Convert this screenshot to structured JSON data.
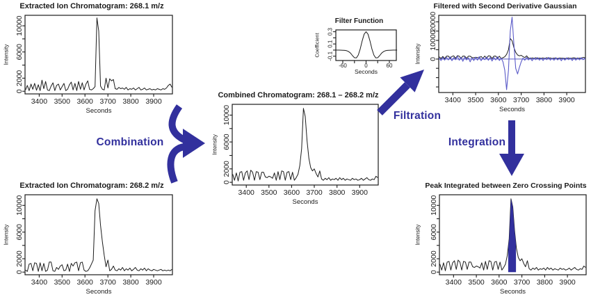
{
  "figure": {
    "background": "#ffffff",
    "accent": "#32309d",
    "blue_line": "#5a5ac8",
    "black_line": "#1b1b1b",
    "text_color": "#1b1b1b"
  },
  "arrows": {
    "combination": {
      "label": "Combination"
    },
    "filtration": {
      "label": "Filtration"
    },
    "integration": {
      "label": "Integration"
    }
  },
  "chart_data": {
    "shared_series": {
      "eic1": {
        "x0": 3340,
        "dx": 8,
        "y": [
          200,
          900,
          100,
          1100,
          300,
          1200,
          150,
          1000,
          100,
          1700,
          400,
          1500,
          200,
          100,
          800,
          1300,
          100,
          900,
          1100,
          200,
          700,
          1200,
          100,
          300,
          1000,
          1400,
          200,
          1200,
          100,
          1500,
          300,
          1300,
          200,
          1100,
          1600,
          300,
          200,
          400,
          700,
          11200,
          9200,
          800,
          300,
          200,
          2000,
          500,
          1900,
          1600,
          1800,
          400,
          300,
          600,
          400,
          500,
          300,
          600,
          200,
          400,
          300,
          500,
          200,
          400,
          600,
          200,
          300,
          500,
          200,
          300,
          400,
          200,
          300,
          200,
          400,
          300,
          200,
          400,
          300,
          500,
          900,
          1100,
          600
        ]
      },
      "eic2": {
        "x0": 3340,
        "dx": 8,
        "y": [
          300,
          100,
          1200,
          1300,
          200,
          1400,
          1300,
          100,
          1400,
          200,
          1300,
          100,
          300,
          1500,
          1500,
          200,
          100,
          700,
          400,
          900,
          1100,
          200,
          300,
          1200,
          100,
          1300,
          900,
          1400,
          1500,
          200,
          1400,
          1500,
          300,
          100,
          200,
          600,
          1200,
          1800,
          9200,
          11000,
          10300,
          7000,
          4500,
          2500,
          800,
          1800,
          200,
          400,
          900,
          300,
          200,
          500,
          300,
          700,
          200,
          500,
          300,
          600,
          200,
          400,
          700,
          300,
          200,
          500,
          300,
          600,
          200,
          500,
          300,
          200,
          400,
          300,
          200,
          300,
          400,
          200,
          300,
          200,
          300,
          200,
          400
        ]
      },
      "combined": {
        "x0": 3340,
        "dx": 8,
        "y": [
          1200,
          300,
          1400,
          200,
          1500,
          1600,
          300,
          1400,
          1700,
          400,
          1800,
          1500,
          300,
          1600,
          1500,
          400,
          1500,
          1500,
          800,
          700,
          900,
          800,
          600,
          1400,
          300,
          1600,
          400,
          1700,
          1600,
          300,
          1500,
          1600,
          400,
          1500,
          300,
          700,
          1200,
          2500,
          5000,
          11000,
          9800,
          6200,
          3600,
          2200,
          1700,
          2000,
          1300,
          800,
          1700,
          500,
          300,
          600,
          400,
          700,
          300,
          500,
          400,
          600,
          300,
          700,
          400,
          600,
          300,
          500,
          400,
          300,
          600,
          400,
          500,
          300,
          400,
          600,
          300,
          500,
          700,
          400,
          300,
          500,
          400,
          900,
          700
        ]
      },
      "filtered": {
        "x0": 3340,
        "dx": 8,
        "y": [
          500,
          -800,
          900,
          -600,
          1000,
          -500,
          1200,
          -900,
          800,
          -400,
          1500,
          -700,
          900,
          -1200,
          1100,
          -500,
          700,
          -1500,
          600,
          -800,
          1000,
          -600,
          1300,
          -900,
          700,
          -400,
          1100,
          -700,
          900,
          -1100,
          800,
          -500,
          1200,
          -800,
          500,
          -1500,
          -6000,
          -16500,
          -6000,
          15000,
          22500,
          8000,
          -5000,
          -8000,
          -4500,
          -1500,
          500,
          -700,
          900,
          -500,
          700,
          -900,
          600,
          -400,
          800,
          -600,
          500,
          -800,
          600,
          -400,
          900,
          -600,
          500,
          -700,
          800,
          -500,
          600,
          -900,
          500,
          -600,
          700,
          -400,
          600,
          -800,
          500,
          -600,
          700,
          -500,
          800,
          -400,
          600
        ]
      },
      "filter_fn": {
        "x0": -80,
        "dx": 5,
        "y": [
          0,
          0,
          0,
          -0.001,
          -0.002,
          -0.004,
          -0.01,
          -0.025,
          -0.05,
          -0.09,
          -0.125,
          -0.127,
          -0.08,
          0.02,
          0.15,
          0.26,
          0.3,
          0.26,
          0.15,
          0.02,
          -0.08,
          -0.127,
          -0.125,
          -0.09,
          -0.05,
          -0.025,
          -0.01,
          -0.004,
          -0.002,
          -0.001,
          0,
          0,
          0
        ]
      }
    },
    "panels": [
      {
        "id": "eic1",
        "type": "line",
        "title": "Extracted Ion Chromatogram: 268.1 m/z",
        "xlabel": "Seconds",
        "ylabel": "Intensity",
        "xlim": [
          3338,
          3982
        ],
        "ylim": [
          -400,
          11600
        ],
        "x_ticks": [
          3400,
          3500,
          3600,
          3700,
          3800,
          3900
        ],
        "x_tick_labels": [
          "3400",
          "3500",
          "3600",
          "3700",
          "3800",
          "3900"
        ],
        "y_ticks": [
          0,
          2000,
          4000,
          6000,
          8000,
          10000
        ],
        "y_tick_labels": [
          "0",
          "2000",
          "",
          "6000",
          "",
          "10000"
        ],
        "series": [
          {
            "name": "chromatogram",
            "color": "black",
            "ref": "eic1",
            "lw": 1
          }
        ]
      },
      {
        "id": "eic2",
        "type": "line",
        "title": "Extracted Ion Chromatogram: 268.2 m/z",
        "xlabel": "Seconds",
        "ylabel": "Intensity",
        "xlim": [
          3338,
          3982
        ],
        "ylim": [
          -400,
          11600
        ],
        "x_ticks": [
          3400,
          3500,
          3600,
          3700,
          3800,
          3900
        ],
        "x_tick_labels": [
          "3400",
          "3500",
          "3600",
          "3700",
          "3800",
          "3900"
        ],
        "y_ticks": [
          0,
          2000,
          4000,
          6000,
          8000,
          10000
        ],
        "y_tick_labels": [
          "0",
          "2000",
          "",
          "6000",
          "",
          "10000"
        ],
        "series": [
          {
            "name": "chromatogram",
            "color": "black",
            "ref": "eic2",
            "lw": 1
          }
        ]
      },
      {
        "id": "combined",
        "type": "line",
        "title": "Combined Chromatogram: 268.1 – 268.2 m/z",
        "xlabel": "Seconds",
        "ylabel": "Intensity",
        "xlim": [
          3338,
          3982
        ],
        "ylim": [
          -400,
          11600
        ],
        "x_ticks": [
          3400,
          3500,
          3600,
          3700,
          3800,
          3900
        ],
        "x_tick_labels": [
          "3400",
          "3500",
          "3600",
          "3700",
          "3800",
          "3900"
        ],
        "y_ticks": [
          0,
          2000,
          4000,
          6000,
          8000,
          10000
        ],
        "y_tick_labels": [
          "0",
          "2000",
          "",
          "6000",
          "",
          "10000"
        ],
        "series": [
          {
            "name": "combined-chromatogram",
            "color": "black",
            "ref": "combined",
            "lw": 1
          }
        ]
      },
      {
        "id": "filter",
        "type": "line",
        "title": "Filter Function",
        "xlabel": "Seconds",
        "ylabel": "Coefficient",
        "xlim": [
          -78,
          78
        ],
        "ylim": [
          -0.17,
          0.33
        ],
        "x_ticks": [
          -60,
          -30,
          0,
          30,
          60
        ],
        "x_tick_labels": [
          "-60",
          "",
          "0",
          "",
          "60"
        ],
        "y_ticks": [
          -0.1,
          0,
          0.1,
          0.2,
          0.3
        ],
        "y_tick_labels": [
          "-0.1",
          "",
          "0.1",
          "",
          "0.3"
        ],
        "series": [
          {
            "name": "second-derivative-gaussian",
            "color": "black",
            "ref": "filter_fn",
            "lw": 1
          }
        ]
      },
      {
        "id": "filtered",
        "type": "line",
        "title": "Filtered with Second Derivative Gaussian",
        "xlabel": "Seconds",
        "ylabel": "Intensity",
        "xlim": [
          3338,
          3982
        ],
        "ylim": [
          -18000,
          23500
        ],
        "x_ticks": [
          3400,
          3500,
          3600,
          3700,
          3800,
          3900
        ],
        "x_tick_labels": [
          "3400",
          "3500",
          "3600",
          "3700",
          "3800",
          "3900"
        ],
        "y_ticks": [
          -15000,
          -10000,
          -5000,
          0,
          5000,
          10000,
          15000,
          20000
        ],
        "y_tick_labels": [
          "",
          "",
          "",
          "0",
          "",
          "10000",
          "",
          "20000"
        ],
        "hline": {
          "y": 0,
          "color": "blue"
        },
        "series": [
          {
            "name": "combined-chromatogram",
            "color": "black",
            "ref": "combined",
            "lw": 1
          },
          {
            "name": "filtered-signal",
            "color": "blue",
            "ref": "filtered",
            "lw": 1.1
          }
        ]
      },
      {
        "id": "integrated",
        "type": "line",
        "title": "Peak Integrated between Zero Crossing Points",
        "xlabel": "Seconds",
        "ylabel": "Intensity",
        "xlim": [
          3338,
          3982
        ],
        "ylim": [
          -400,
          11600
        ],
        "x_ticks": [
          3400,
          3500,
          3600,
          3700,
          3800,
          3900
        ],
        "x_tick_labels": [
          "3400",
          "3500",
          "3600",
          "3700",
          "3800",
          "3900"
        ],
        "y_ticks": [
          0,
          2000,
          4000,
          6000,
          8000,
          10000
        ],
        "y_tick_labels": [
          "0",
          "2000",
          "",
          "6000",
          "",
          "10000"
        ],
        "series": [
          {
            "name": "combined-chromatogram",
            "color": "black",
            "ref": "combined",
            "lw": 1
          }
        ],
        "fill_region": {
          "ref": "combined",
          "from": 3640,
          "to": 3674,
          "baseline": 0,
          "color": "accent"
        }
      }
    ]
  }
}
